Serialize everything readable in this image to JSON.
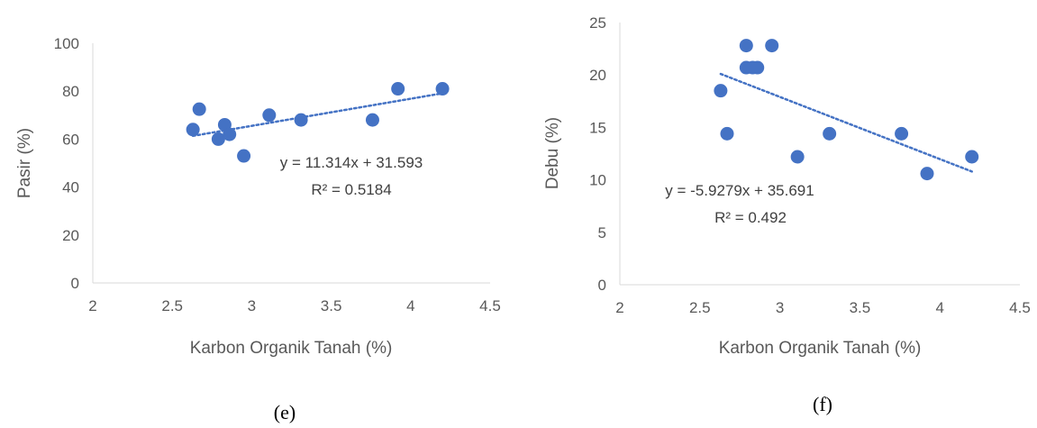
{
  "chart_data": [
    {
      "type": "scatter",
      "id": "e",
      "caption": "(e)",
      "xlabel": "Karbon Organik Tanah (%)",
      "ylabel": "Pasir (%)",
      "xlim": [
        2,
        4.5
      ],
      "ylim": [
        0,
        100
      ],
      "xticks": [
        "2",
        "2.5",
        "3",
        "3.5",
        "4",
        "4.5"
      ],
      "yticks": [
        "0",
        "20",
        "40",
        "60",
        "80",
        "100"
      ],
      "grid": false,
      "color": "#4472C4",
      "points": [
        {
          "x": 2.63,
          "y": 64
        },
        {
          "x": 2.67,
          "y": 72.5
        },
        {
          "x": 2.79,
          "y": 60
        },
        {
          "x": 2.83,
          "y": 66
        },
        {
          "x": 2.86,
          "y": 62
        },
        {
          "x": 2.95,
          "y": 53
        },
        {
          "x": 3.11,
          "y": 70
        },
        {
          "x": 3.31,
          "y": 68
        },
        {
          "x": 3.76,
          "y": 68
        },
        {
          "x": 3.92,
          "y": 81
        },
        {
          "x": 4.2,
          "y": 81
        }
      ],
      "trendline": {
        "slope": 11.314,
        "intercept": 31.593,
        "x_range": [
          2.63,
          4.2
        ]
      },
      "equation": "y = 11.314x + 31.593",
      "r2": "R² = 0.5184"
    },
    {
      "type": "scatter",
      "id": "f",
      "caption": "(f)",
      "xlabel": "Karbon Organik Tanah (%)",
      "ylabel": "Debu (%)",
      "xlim": [
        2,
        4.5
      ],
      "ylim": [
        0,
        25
      ],
      "xticks": [
        "2",
        "2.5",
        "3",
        "3.5",
        "4",
        "4.5"
      ],
      "yticks": [
        "0",
        "5",
        "10",
        "15",
        "20",
        "25"
      ],
      "grid": false,
      "color": "#4472C4",
      "points": [
        {
          "x": 2.63,
          "y": 18.5
        },
        {
          "x": 2.67,
          "y": 14.4
        },
        {
          "x": 2.79,
          "y": 22.8
        },
        {
          "x": 2.79,
          "y": 20.7
        },
        {
          "x": 2.83,
          "y": 20.7
        },
        {
          "x": 2.86,
          "y": 20.7
        },
        {
          "x": 2.95,
          "y": 22.8
        },
        {
          "x": 3.11,
          "y": 12.2
        },
        {
          "x": 3.31,
          "y": 14.4
        },
        {
          "x": 3.76,
          "y": 14.4
        },
        {
          "x": 3.92,
          "y": 10.6
        },
        {
          "x": 4.2,
          "y": 12.2
        }
      ],
      "trendline": {
        "slope": -5.9279,
        "intercept": 35.691,
        "x_range": [
          2.63,
          4.2
        ]
      },
      "equation": "y = -5.9279x + 35.691",
      "r2": "R² = 0.492"
    }
  ]
}
